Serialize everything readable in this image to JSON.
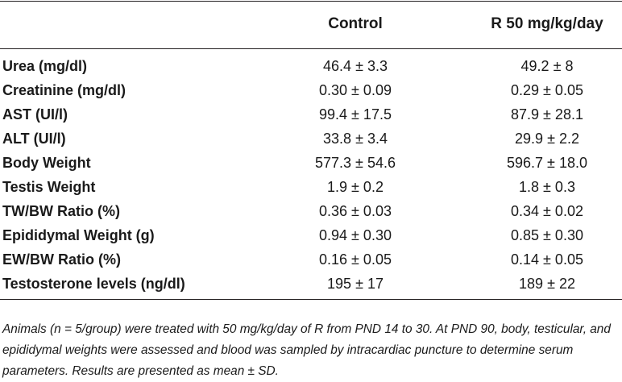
{
  "table": {
    "headers": [
      "",
      "Control",
      "R 50 mg/kg/day"
    ],
    "rows": [
      {
        "label": "Urea (mg/dl)",
        "control": "46.4 ± 3.3",
        "treated": "49.2 ± 8"
      },
      {
        "label": "Creatinine (mg/dl)",
        "control": "0.30 ± 0.09",
        "treated": "0.29 ± 0.05"
      },
      {
        "label": "AST (UI/l)",
        "control": "99.4 ± 17.5",
        "treated": "87.9 ± 28.1"
      },
      {
        "label": "ALT (UI/l)",
        "control": "33.8 ± 3.4",
        "treated": "29.9 ± 2.2"
      },
      {
        "label": "Body Weight",
        "control": "577.3 ± 54.6",
        "treated": "596.7 ± 18.0"
      },
      {
        "label": "Testis Weight",
        "control": "1.9 ± 0.2",
        "treated": "1.8 ± 0.3"
      },
      {
        "label": "TW/BW Ratio (%)",
        "control": "0.36 ± 0.03",
        "treated": "0.34 ± 0.02"
      },
      {
        "label": "Epididymal Weight (g)",
        "control": "0.94 ± 0.30",
        "treated": "0.85 ± 0.30"
      },
      {
        "label": "EW/BW Ratio (%)",
        "control": "0.16 ± 0.05",
        "treated": "0.14 ± 0.05"
      },
      {
        "label": "Testosterone levels (ng/dl)",
        "control": "195 ± 17",
        "treated": "189 ± 22"
      }
    ]
  },
  "footnote": "Animals (n = 5/group) were treated with 50 mg/kg/day of R from PND 14 to 30. At PND 90, body, testicular, and epididymal weights were assessed and blood was sampled by intracardiac puncture to determine serum parameters. Results are presented as mean ± SD."
}
